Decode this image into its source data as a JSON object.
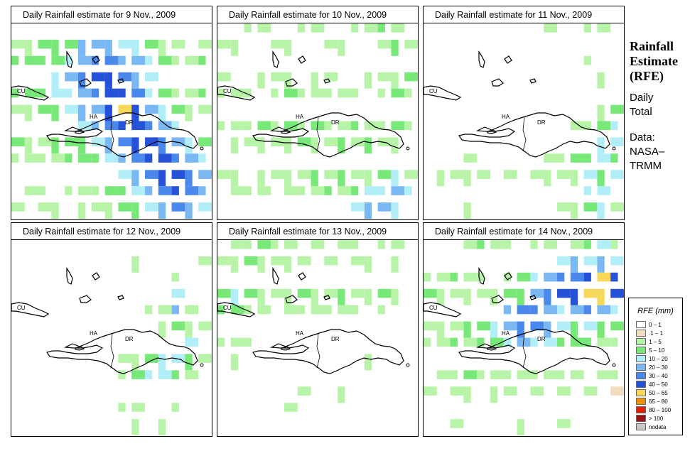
{
  "panels": [
    {
      "title": "Daily Rainfall estimate for  9 Nov., 2009"
    },
    {
      "title": "Daily Rainfall estimate for  10 Nov., 2009"
    },
    {
      "title": "Daily Rainfall estimate for  11 Nov., 2009"
    },
    {
      "title": "Daily Rainfall estimate for  12 Nov., 2009"
    },
    {
      "title": "Daily Rainfall estimate for  13 Nov., 2009"
    },
    {
      "title": "Daily Rainfall estimate for  14 Nov., 2009"
    }
  ],
  "map_labels": {
    "cuba": "CU",
    "haiti": "HA",
    "dr": "DR"
  },
  "sidebar": {
    "heading_line1": "Rainfall",
    "heading_line2": "Estimate",
    "heading_line3": "(RFE)",
    "daily_line1": "Daily",
    "daily_line2": "Total",
    "data_line1": "Data:",
    "data_line2": "NASA–",
    "data_line3": "TRMM"
  },
  "legend": {
    "title": "RFE (mm)",
    "items": [
      {
        "label": "0 – 1",
        "color": "#ffffff"
      },
      {
        "label": ".1 – 1",
        "color": "#f1dcc0"
      },
      {
        "label": "1 – 5",
        "color": "#b8f4a8"
      },
      {
        "label": "5 – 10",
        "color": "#78e878"
      },
      {
        "label": "10 – 20",
        "color": "#b2eef8"
      },
      {
        "label": "20 – 30",
        "color": "#7ab8f4"
      },
      {
        "label": "30 – 40",
        "color": "#4b88ee"
      },
      {
        "label": "40 – 50",
        "color": "#2552d8"
      },
      {
        "label": "50 – 65",
        "color": "#f8d858"
      },
      {
        "label": "65 – 80",
        "color": "#f49000"
      },
      {
        "label": "80 – 100",
        "color": "#e02000"
      },
      {
        "label": "> 100",
        "color": "#9c1010"
      },
      {
        "label": "nodata",
        "color": "#c8c8c8"
      }
    ]
  }
}
